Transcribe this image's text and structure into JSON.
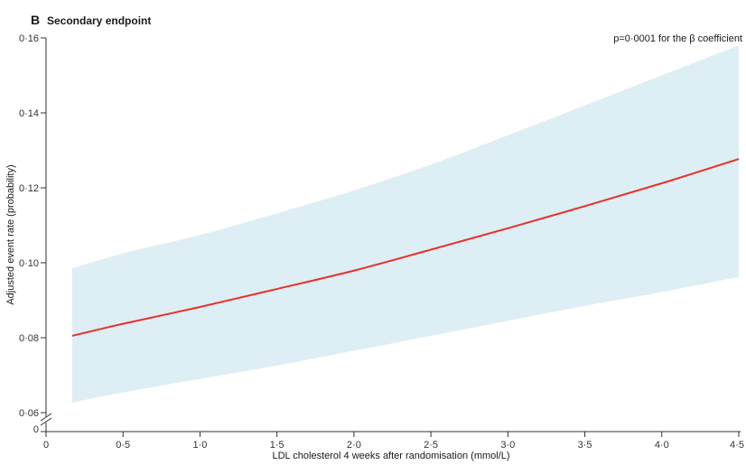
{
  "chart_data": {
    "type": "line",
    "panel_letter": "B",
    "title": "Secondary endpoint",
    "xlabel": "LDL cholesterol 4 weeks after randomisation (mmol/L)",
    "ylabel": "Adjusted event rate (probability)",
    "annotation": "p=0·0001 for the β coefficient",
    "xlim": [
      0,
      4.5
    ],
    "ylim": [
      0.06,
      0.16
    ],
    "x_ticks": [
      "0",
      "0·5",
      "1·0",
      "1·5",
      "2·0",
      "2·5",
      "3·0",
      "3·5",
      "4·0",
      "4·5"
    ],
    "y_ticks": [
      "0·06",
      "0·08",
      "0·10",
      "0·12",
      "0·14",
      "0·16"
    ],
    "y_axis_break": true,
    "grid": false,
    "series": [
      {
        "color": "#e8302a",
        "x": [
          0.17,
          0.5,
          1.0,
          1.5,
          2.0,
          2.5,
          3.0,
          3.5,
          4.0,
          4.5
        ],
        "y": [
          0.0805,
          0.0837,
          0.0882,
          0.093,
          0.0979,
          0.1035,
          0.1092,
          0.1151,
          0.1212,
          0.1277
        ],
        "lower": [
          0.0627,
          0.0654,
          0.069,
          0.0726,
          0.0765,
          0.0805,
          0.0845,
          0.0885,
          0.0922,
          0.0962
        ],
        "upper": [
          0.0985,
          0.1025,
          0.1074,
          0.1132,
          0.1193,
          0.1262,
          0.134,
          0.142,
          0.15,
          0.158
        ]
      }
    ],
    "band_color": "#ddeef4"
  }
}
